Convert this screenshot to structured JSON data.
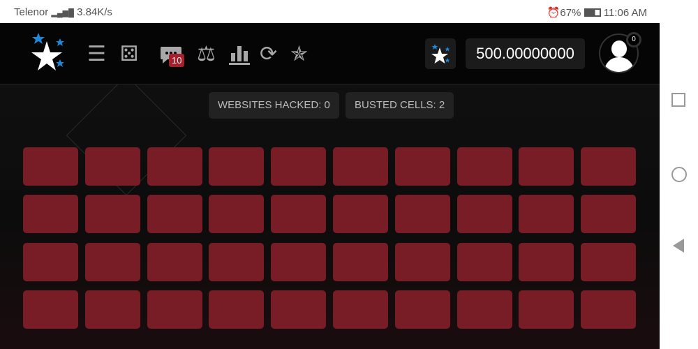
{
  "status_bar": {
    "carrier": "Telenor",
    "net_speed": "3.84K/s",
    "battery": "67%",
    "time": "11:06 AM"
  },
  "header": {
    "icons": [
      "menu-icon",
      "dice-icon",
      "chat-icon",
      "scale-icon",
      "bar-chart-icon",
      "refresh-icon",
      "stars-icon"
    ],
    "chat_badge": "10",
    "balance": "500.00000000",
    "notifications": "0"
  },
  "counters": {
    "websites_hacked": "WEBSITES HACKED: 0",
    "busted_cells": "BUSTED CELLS: 2"
  },
  "grid": {
    "rows": 4,
    "cols": 10,
    "cell_color": "#781c26"
  }
}
